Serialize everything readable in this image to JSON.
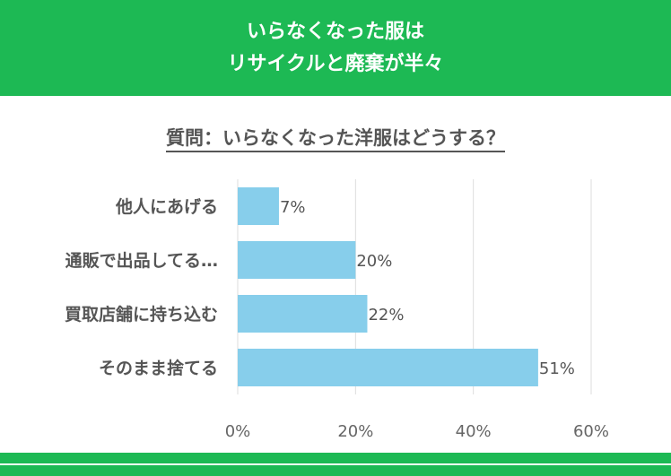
{
  "header": {
    "line1": "いらなくなった服は",
    "line2": "リサイクルと廃棄が半々"
  },
  "question": "質問：いらなくなった洋服はどうする？",
  "chart_data": {
    "type": "bar",
    "orientation": "horizontal",
    "categories": [
      "他人にあげる",
      "通販で出品してる…",
      "買取店舗に持ち込む",
      "そのまま捨てる"
    ],
    "values": [
      7,
      20,
      22,
      51
    ],
    "value_labels": [
      "7%",
      "20%",
      "22%",
      "51%"
    ],
    "xlim": [
      0,
      60
    ],
    "xticks": [
      "0%",
      "20%",
      "40%",
      "60%"
    ],
    "grid": true,
    "bar_color": "#87ceeb"
  },
  "colors": {
    "header_bg": "#1db954",
    "bar": "#87ceeb",
    "grid": "#dddddd",
    "text": "#555555"
  }
}
